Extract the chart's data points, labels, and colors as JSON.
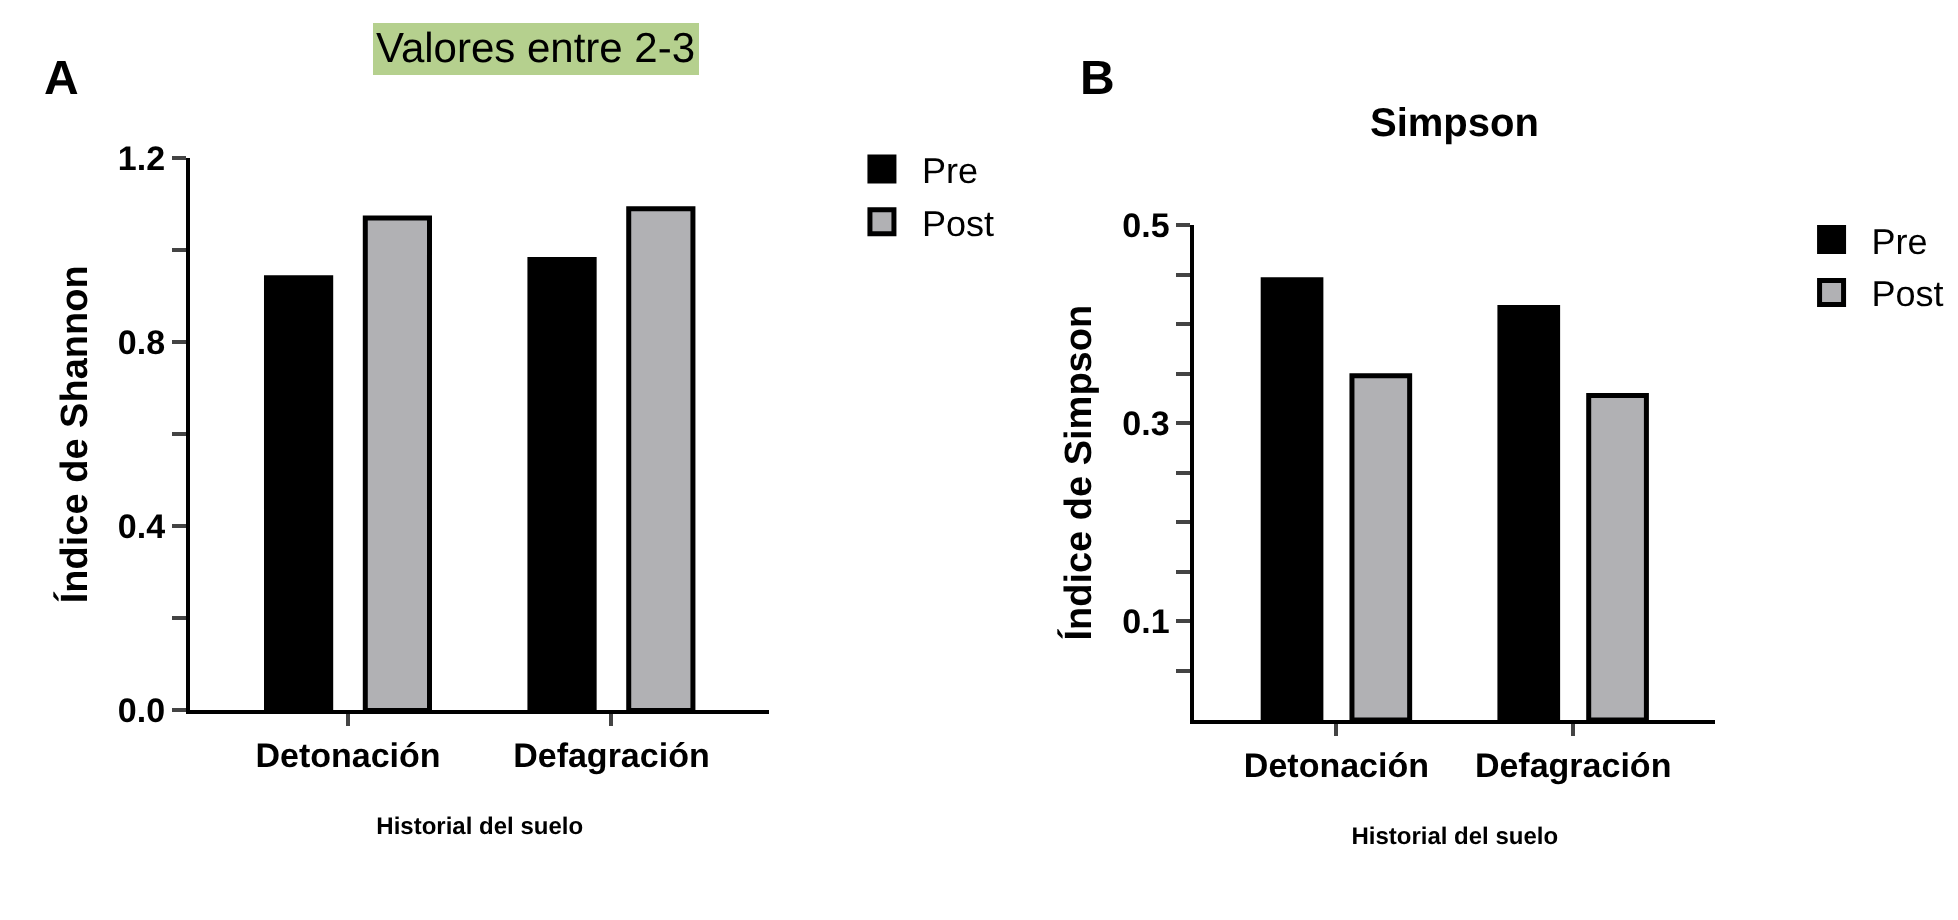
{
  "chart_data": [
    {
      "type": "bar",
      "xlabel": "Historial del suelo",
      "ylabel": "Índice de Shannon",
      "annotations": [
        "A",
        "Valores entre 2-3"
      ],
      "categories": [
        "Detonación",
        "Defagración"
      ],
      "series": [
        {
          "name": "Pre",
          "color": "#000000",
          "values": [
            0.94,
            0.98
          ]
        },
        {
          "name": "Post",
          "color": "#b1b1b4",
          "values": [
            1.07,
            1.09
          ]
        }
      ],
      "ylim": [
        0,
        1.2
      ],
      "yticks": [
        {
          "value": 0,
          "label": "0.0"
        },
        {
          "value": 0.2,
          "label": null
        },
        0.4,
        {
          "value": 0.6,
          "label": null
        },
        0.8,
        {
          "value": 1.0,
          "label": null
        },
        1.2
      ],
      "legend": "top right"
    },
    {
      "type": "bar",
      "title": "Simpson",
      "xlabel": "Historial del suelo",
      "ylabel": "Índice de Simpson",
      "annotations": [
        "B"
      ],
      "categories": [
        "Detonación",
        "Defagración"
      ],
      "series": [
        {
          "name": "Pre",
          "color": "#000000",
          "values": [
            0.445,
            0.417
          ]
        },
        {
          "name": "Post",
          "color": "#b1b1b4",
          "values": [
            0.348,
            0.328
          ]
        }
      ],
      "ylim": [
        0,
        0.5
      ],
      "yticks": [
        {
          "value": 0.05,
          "label": null
        },
        0.1,
        {
          "value": 0.15,
          "label": null
        },
        {
          "value": 0.2,
          "label": null
        },
        {
          "value": 0.25,
          "label": null
        },
        0.3,
        {
          "value": 0.35,
          "label": null
        },
        {
          "value": 0.4,
          "label": null
        },
        {
          "value": 0.45,
          "label": null
        },
        0.5
      ],
      "legend": "top right"
    }
  ]
}
